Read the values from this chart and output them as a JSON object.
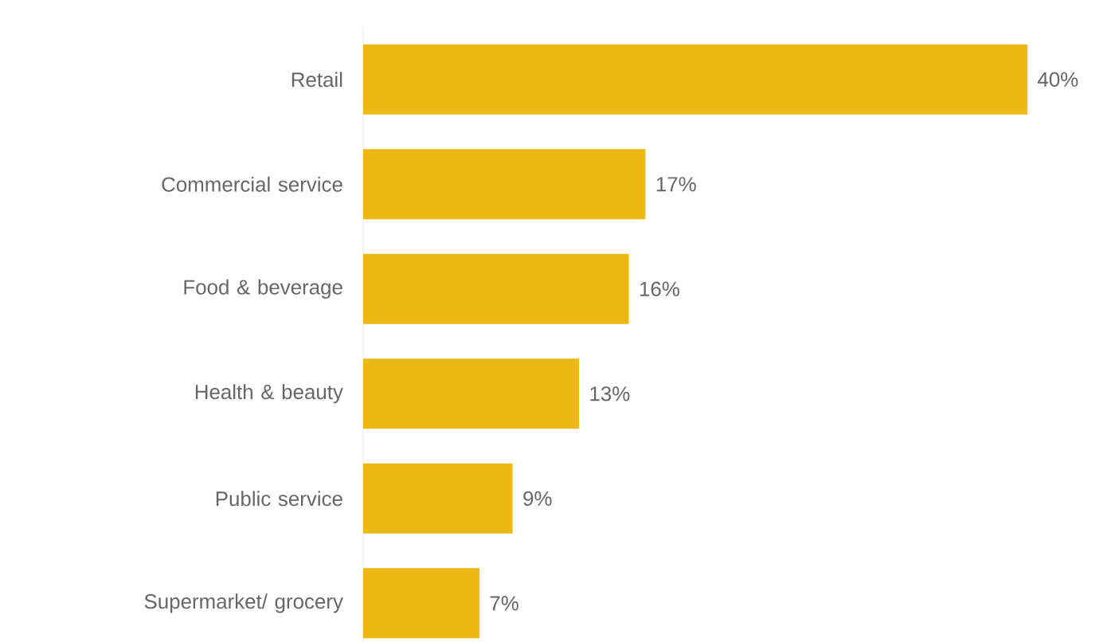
{
  "chart_data": {
    "type": "bar",
    "orientation": "horizontal",
    "categories": [
      "Retail",
      "Commercial service",
      "Food & beverage",
      "Health & beauty",
      "Public service",
      "Supermarket/ grocery"
    ],
    "values": [
      40,
      17,
      16,
      13,
      9,
      7
    ],
    "value_labels": [
      "40%",
      "17%",
      "16%",
      "13%",
      "9%",
      "7%"
    ],
    "color": "#eeb814"
  }
}
